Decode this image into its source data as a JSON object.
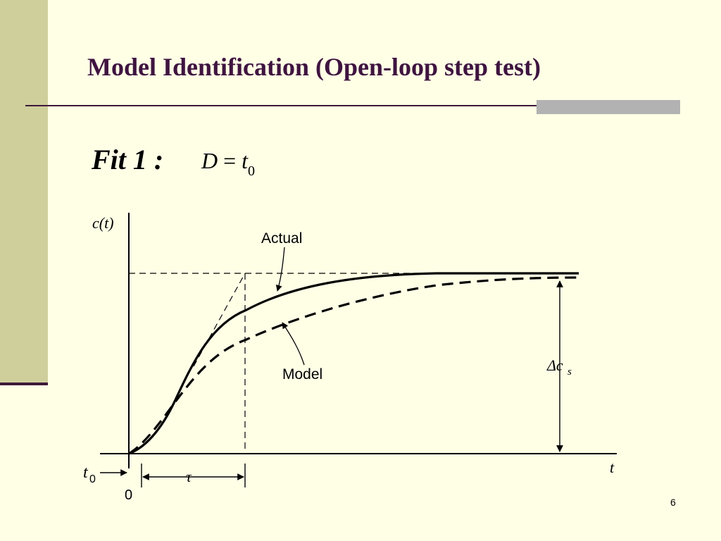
{
  "slide": {
    "title": "Model Identification (Open-loop step test)",
    "fit_label": "Fit 1 :",
    "equation": {
      "lhs": "D",
      "eq": "=",
      "rhs": "t",
      "rhs_sub": "0"
    },
    "page_number": "6"
  },
  "diagram": {
    "y_axis_label": "c(t)",
    "x_axis_label": "t",
    "origin_label": "0",
    "t0_label": "t",
    "t0_sub": "0",
    "tau_label": "τ",
    "delta_label": "Δc",
    "delta_sub": "s",
    "actual_label": "Actual",
    "model_label": "Model"
  },
  "colors": {
    "background": "#ffffe6",
    "band": "#cfcf9c",
    "title": "#3f1440",
    "rule": "#3d1a3a",
    "bar": "#b2b2b2"
  }
}
